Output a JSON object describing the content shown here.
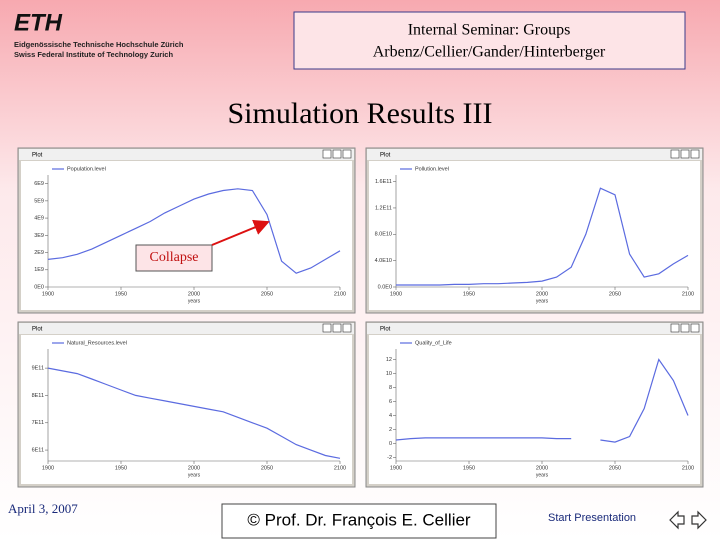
{
  "header": {
    "logo": "ETH",
    "logo_line1": "Eidgenössische Technische Hochschule Zürich",
    "logo_line2": "Swiss Federal Institute of Technology Zurich",
    "seminar_line1": "Internal Seminar: Groups",
    "seminar_line2": "Arbenz/Cellier/Gander/Hinterberger"
  },
  "title": "Simulation Results III",
  "annotation": "Collapse",
  "footer": {
    "date": "April 3, 2007",
    "copyright": "© Prof. Dr. François E. Cellier",
    "start": "Start Presentation"
  },
  "chart_data": [
    {
      "type": "line",
      "window_title": "Plot",
      "xlabel": "years",
      "x": [
        1900,
        1910,
        1920,
        1930,
        1940,
        1950,
        1960,
        1970,
        1980,
        1990,
        2000,
        2010,
        2020,
        2030,
        2040,
        2050,
        2060,
        2070,
        2080,
        2090,
        2100
      ],
      "series": [
        {
          "name": "Population.level",
          "color": "#5b6be0",
          "values": [
            1600000000,
            1700000000,
            1900000000,
            2200000000,
            2600000000,
            3000000000,
            3400000000,
            3800000000,
            4300000000,
            4700000000,
            5100000000,
            5400000000,
            5600000000,
            5700000000,
            5600000000,
            4200000000,
            1500000000,
            800000000,
            1100000000,
            1600000000,
            2100000000
          ]
        }
      ],
      "xlim": [
        1900,
        2100
      ],
      "xticks": [
        1900,
        1950,
        2000,
        2050,
        2100
      ],
      "ylim": [
        0,
        6500000000
      ],
      "yticks": [
        {
          "value": 0,
          "label": "0E0"
        },
        {
          "value": 1000000000,
          "label": "1E9"
        },
        {
          "value": 2000000000,
          "label": "2E9"
        },
        {
          "value": 3000000000,
          "label": "3E9"
        },
        {
          "value": 4000000000,
          "label": "4E9"
        },
        {
          "value": 5000000000,
          "label": "5E9"
        },
        {
          "value": 6000000000,
          "label": "6E9"
        }
      ]
    },
    {
      "type": "line",
      "window_title": "Plot",
      "xlabel": "years",
      "x": [
        1900,
        1910,
        1920,
        1930,
        1940,
        1950,
        1960,
        1970,
        1980,
        1990,
        2000,
        2010,
        2020,
        2030,
        2040,
        2050,
        2060,
        2070,
        2080,
        2090,
        2100
      ],
      "series": [
        {
          "name": "Pollution.level",
          "color": "#5b6be0",
          "values": [
            3000000000,
            3000000000,
            3000000000,
            3000000000,
            4000000000,
            4000000000,
            5000000000,
            5000000000,
            6000000000,
            7000000000,
            9000000000,
            15000000000,
            30000000000,
            80000000000,
            150000000000,
            140000000000,
            50000000000,
            15000000000,
            20000000000,
            35000000000,
            48000000000
          ]
        }
      ],
      "xlim": [
        1900,
        2100
      ],
      "xticks": [
        1900,
        1950,
        2000,
        2050,
        2100
      ],
      "ylim": [
        0,
        170000000000
      ],
      "yticks": [
        {
          "value": 0,
          "label": "0.0E0"
        },
        {
          "value": 40000000000,
          "label": "4.0E10"
        },
        {
          "value": 80000000000,
          "label": "8.0E10"
        },
        {
          "value": 120000000000,
          "label": "1.2E11"
        },
        {
          "value": 160000000000,
          "label": "1.6E11"
        }
      ]
    },
    {
      "type": "line",
      "window_title": "Plot",
      "xlabel": "years",
      "x": [
        1900,
        1910,
        1920,
        1930,
        1940,
        1950,
        1960,
        1970,
        1980,
        1990,
        2000,
        2010,
        2020,
        2030,
        2040,
        2050,
        2060,
        2070,
        2080,
        2090,
        2100
      ],
      "series": [
        {
          "name": "Natural_Resources.level",
          "color": "#5b6be0",
          "values": [
            900000000000,
            890000000000,
            880000000000,
            860000000000,
            840000000000,
            820000000000,
            800000000000,
            790000000000,
            780000000000,
            770000000000,
            760000000000,
            750000000000,
            740000000000,
            720000000000,
            700000000000,
            680000000000,
            650000000000,
            620000000000,
            600000000000,
            580000000000,
            570000000000
          ]
        }
      ],
      "xlim": [
        1900,
        2100
      ],
      "xticks": [
        1900,
        1950,
        2000,
        2050,
        2100
      ],
      "ylim": [
        560000000000,
        970000000000
      ],
      "yticks": [
        {
          "value": 600000000000,
          "label": "6E11"
        },
        {
          "value": 700000000000,
          "label": "7E11"
        },
        {
          "value": 800000000000,
          "label": "8E11"
        },
        {
          "value": 900000000000,
          "label": "9E11"
        }
      ]
    },
    {
      "type": "line",
      "window_title": "Plot",
      "xlabel": "years",
      "x": [
        1900,
        1910,
        1920,
        1930,
        1940,
        1950,
        1960,
        1970,
        1980,
        1990,
        2000,
        2010,
        2020,
        2030,
        2040,
        2050,
        2060,
        2070,
        2080,
        2090,
        2100
      ],
      "series": [
        {
          "name": "Quality_of_Life",
          "color": "#5b6be0",
          "values": [
            0.5,
            0.7,
            0.8,
            0.8,
            0.8,
            0.8,
            0.8,
            0.8,
            0.8,
            0.8,
            0.8,
            0.7,
            0.7,
            null,
            0.5,
            0.2,
            1.0,
            5,
            12,
            9,
            4
          ]
        }
      ],
      "xlim": [
        1900,
        2100
      ],
      "xticks": [
        1900,
        1950,
        2000,
        2050,
        2100
      ],
      "ylim": [
        -2.5,
        13.5
      ],
      "yticks": [
        -2,
        0,
        2,
        4,
        6,
        8,
        10,
        12
      ]
    }
  ]
}
